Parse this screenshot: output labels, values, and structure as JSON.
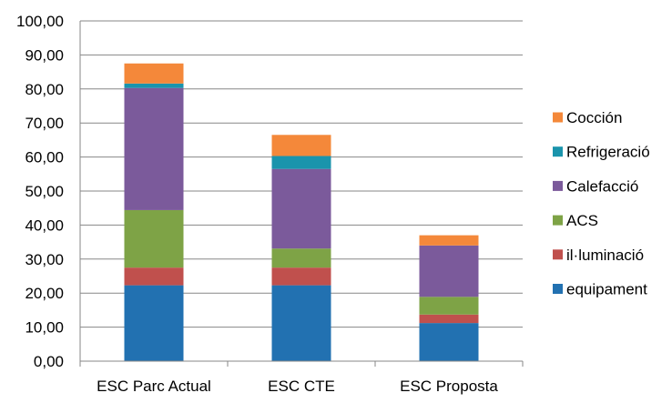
{
  "chart_data": {
    "type": "bar",
    "stacked": true,
    "categories": [
      "ESC Parc Actual",
      "ESC CTE",
      "ESC Proposta"
    ],
    "ylim": [
      0,
      100
    ],
    "y_ticks": [
      "0,00",
      "10,00",
      "20,00",
      "30,00",
      "40,00",
      "50,00",
      "60,00",
      "70,00",
      "80,00",
      "90,00",
      "100,00"
    ],
    "grid": true,
    "legend_position": "right",
    "series": [
      {
        "name": "equipament",
        "color": "#2271b1",
        "values": [
          22.3,
          22.3,
          11.2
        ]
      },
      {
        "name": "il·luminació",
        "color": "#c0504d",
        "values": [
          5.2,
          5.2,
          2.5
        ]
      },
      {
        "name": "ACS",
        "color": "#7ea346",
        "values": [
          16.9,
          5.6,
          5.2
        ]
      },
      {
        "name": "Calefacció",
        "color": "#7b5a9b",
        "values": [
          35.9,
          23.4,
          15.1
        ]
      },
      {
        "name": "Refrigeració",
        "color": "#1a94ac",
        "values": [
          1.3,
          3.8,
          0.0
        ]
      },
      {
        "name": "Cocción",
        "color": "#f4883a",
        "values": [
          5.9,
          6.2,
          3.0
        ]
      }
    ]
  }
}
